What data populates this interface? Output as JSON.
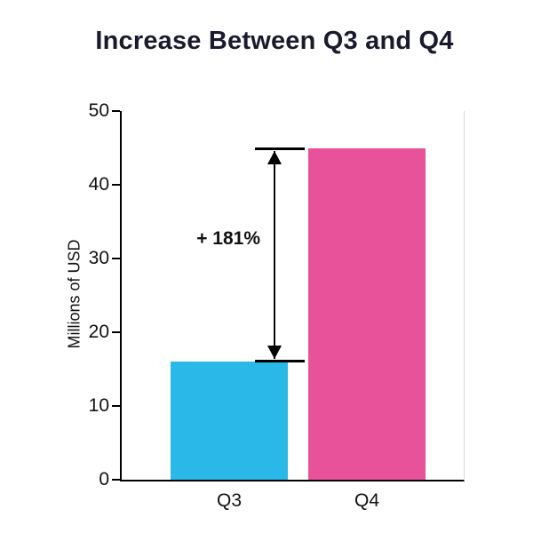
{
  "chart_data": {
    "type": "bar",
    "title": "Increase Between Q3 and Q4",
    "categories": [
      "Q3",
      "Q4"
    ],
    "values": [
      16,
      45
    ],
    "colors": [
      "#29b8e8",
      "#e8529b"
    ],
    "ylabel": "Millions of USD",
    "xlabel": "",
    "ylim": [
      0,
      50
    ],
    "yticks": [
      0,
      10,
      20,
      30,
      40,
      50
    ],
    "grid": false,
    "legend": "none",
    "annotation": {
      "label": "+ 181%",
      "from_value": 16,
      "to_value": 45,
      "percent_increase": 181
    }
  }
}
